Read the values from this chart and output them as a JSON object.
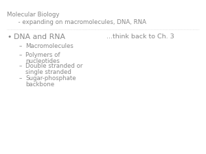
{
  "background_color": "#ffffff",
  "title_line1": "Molecular Biology",
  "title_line2": "      - expanding on macromolecules, DNA, RNA",
  "bullet_main": "DNA and RNA",
  "bullet_aside": "...think back to Ch. 3",
  "sub_bullets": [
    "Macromolecules",
    "Polymers of\nnucleotides",
    "Double stranded or\nsingle stranded",
    "Sugar-phosphate\nbackbone"
  ],
  "title_fontsize": 6.2,
  "main_bullet_fontsize": 7.8,
  "sub_bullet_fontsize": 6.2,
  "aside_fontsize": 6.8,
  "text_color": "#888888",
  "title_color": "#888888"
}
